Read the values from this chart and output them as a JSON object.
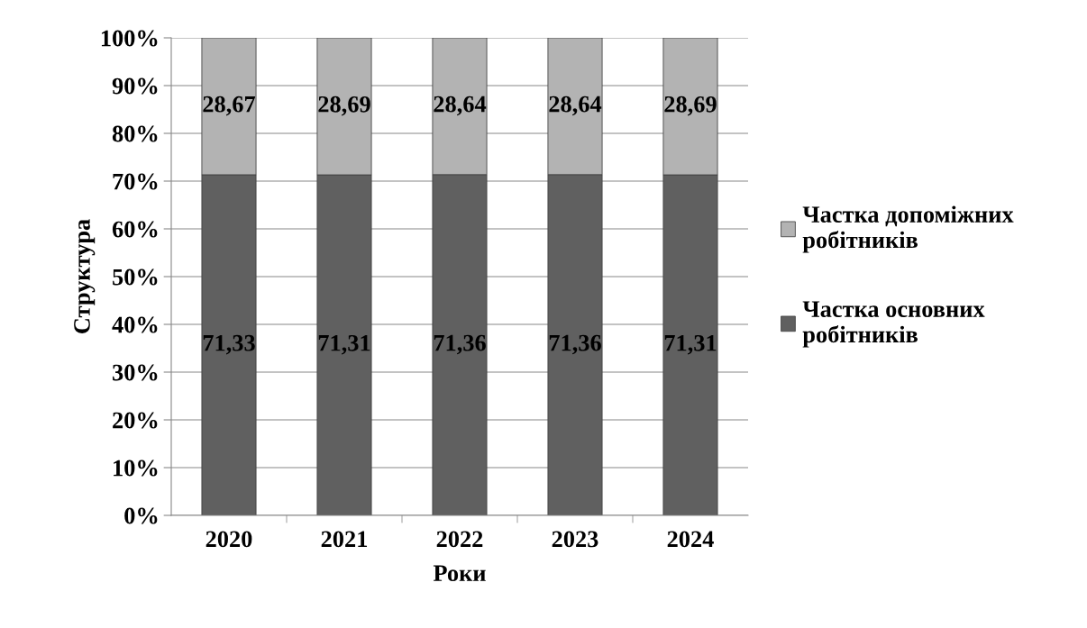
{
  "chart_data": {
    "type": "bar",
    "stacked": true,
    "xlabel": "Роки",
    "ylabel": "Структура",
    "categories": [
      "2020",
      "2021",
      "2022",
      "2023",
      "2024"
    ],
    "series": [
      {
        "name": "Частка основних робітників",
        "color": "#606060",
        "values": [
          71.33,
          71.31,
          71.36,
          71.36,
          71.31
        ],
        "value_labels": [
          "71,33",
          "71,31",
          "71,36",
          "71,36",
          "71,31"
        ]
      },
      {
        "name": "Частка допоміжних робітників",
        "color": "#b3b3b3",
        "values": [
          28.67,
          28.69,
          28.64,
          28.64,
          28.69
        ],
        "value_labels": [
          "28,67",
          "28,69",
          "28,64",
          "28,64",
          "28,69"
        ]
      }
    ],
    "ylim": [
      0,
      100
    ],
    "yticks": [
      {
        "value": 0,
        "label": "0%"
      },
      {
        "value": 10,
        "label": "10%"
      },
      {
        "value": 20,
        "label": "20%"
      },
      {
        "value": 30,
        "label": "30%"
      },
      {
        "value": 40,
        "label": "40%"
      },
      {
        "value": 50,
        "label": "50%"
      },
      {
        "value": 60,
        "label": "60%"
      },
      {
        "value": 70,
        "label": "70%"
      },
      {
        "value": 80,
        "label": "80%"
      },
      {
        "value": 90,
        "label": "90%"
      },
      {
        "value": 100,
        "label": "100%"
      }
    ],
    "grid": "y",
    "legend": "right"
  }
}
